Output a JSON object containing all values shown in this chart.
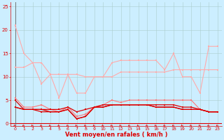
{
  "background_color": "#cceeff",
  "grid_color": "#aacccc",
  "x_label": "Vent moyen/en rafales ( km/h )",
  "x_ticks": [
    0,
    1,
    2,
    3,
    4,
    5,
    6,
    7,
    8,
    9,
    10,
    11,
    12,
    13,
    14,
    15,
    16,
    17,
    18,
    19,
    20,
    21,
    22,
    23
  ],
  "ylim": [
    -0.5,
    26
  ],
  "yticks": [
    0,
    5,
    10,
    15,
    20,
    25
  ],
  "series": [
    {
      "color": "#ffaaaa",
      "lw": 0.8,
      "marker": "s",
      "ms": 1.5,
      "y": [
        21,
        15,
        13,
        13,
        10.5,
        5.5,
        10.5,
        6.5,
        6.5,
        10,
        10,
        13,
        13.5,
        13.5,
        13.5,
        13.5,
        13.5,
        11.5,
        15,
        10,
        10,
        6.5,
        16.5,
        16.5
      ]
    },
    {
      "color": "#ffaaaa",
      "lw": 0.8,
      "marker": "s",
      "ms": 1.5,
      "y": [
        12,
        12,
        13,
        8.5,
        10.5,
        10.5,
        10.5,
        10.5,
        10,
        10,
        10,
        10,
        11,
        11,
        11,
        11,
        11,
        11,
        11.5,
        11.5,
        11.5,
        11.5,
        11.5,
        11.5
      ]
    },
    {
      "color": "#ff7777",
      "lw": 0.8,
      "marker": "s",
      "ms": 1.5,
      "y": [
        5.5,
        3.5,
        3.5,
        4,
        3,
        2.5,
        3.5,
        1.5,
        2,
        3.5,
        4,
        5,
        4.5,
        5,
        5,
        5,
        5,
        5,
        5,
        5,
        5,
        3,
        2.5,
        2.5
      ]
    },
    {
      "color": "#dd0000",
      "lw": 0.9,
      "marker": "s",
      "ms": 1.5,
      "y": [
        5,
        3,
        3,
        3,
        3,
        3,
        3.5,
        2.5,
        3,
        3.5,
        4,
        4,
        4,
        4,
        4,
        4,
        4,
        4,
        4,
        3.5,
        3.5,
        3,
        2.5,
        2.5
      ]
    },
    {
      "color": "#dd0000",
      "lw": 0.9,
      "marker": "s",
      "ms": 1.5,
      "y": [
        3.5,
        3,
        3,
        3,
        2.5,
        2.5,
        3,
        1,
        1.5,
        3.5,
        3.5,
        4,
        4,
        4,
        4,
        4,
        3.5,
        3.5,
        3.5,
        3,
        3,
        3,
        2.5,
        2.5
      ]
    },
    {
      "color": "#dd0000",
      "lw": 0.9,
      "marker": "s",
      "ms": 1.5,
      "y": [
        3.5,
        3,
        3,
        2.5,
        2.5,
        2.5,
        3,
        1,
        1.5,
        3.5,
        3.5,
        4,
        4,
        4,
        4,
        4,
        3.5,
        3.5,
        3.5,
        3,
        3,
        3,
        2.5,
        2.5
      ]
    }
  ],
  "arrow_color": "#dd0000",
  "xlabel_color": "#dd0000",
  "xlabel_fontsize": 6,
  "tick_color": "#dd0000",
  "tick_fontsize": 4.5,
  "ytick_fontsize": 5.0
}
